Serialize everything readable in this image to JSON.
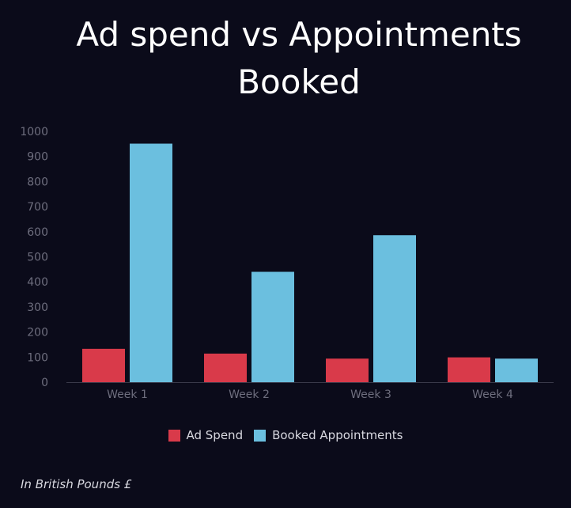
{
  "chart_data": {
    "type": "bar",
    "title": "Ad spend vs Appointments Booked",
    "categories": [
      "Week 1",
      "Week 2",
      "Week 3",
      "Week 4"
    ],
    "series": [
      {
        "name": "Ad Spend",
        "values": [
          133,
          114,
          94,
          99
        ],
        "color": "#d93a4a"
      },
      {
        "name": "Booked Appointments",
        "values": [
          951,
          440,
          586,
          94
        ],
        "color": "#6bbfdf"
      }
    ],
    "ylim": [
      0,
      1000
    ],
    "yticks": [
      0,
      100,
      200,
      300,
      400,
      500,
      600,
      700,
      800,
      900,
      1000
    ],
    "xlabel": "",
    "ylabel": "",
    "grid": false,
    "legend_position": "bottom"
  },
  "note": "In British Pounds £",
  "colors": {
    "background": "#0b0b1a",
    "axis_text": "#6e6e7e",
    "baseline": "#3a3a4a"
  }
}
